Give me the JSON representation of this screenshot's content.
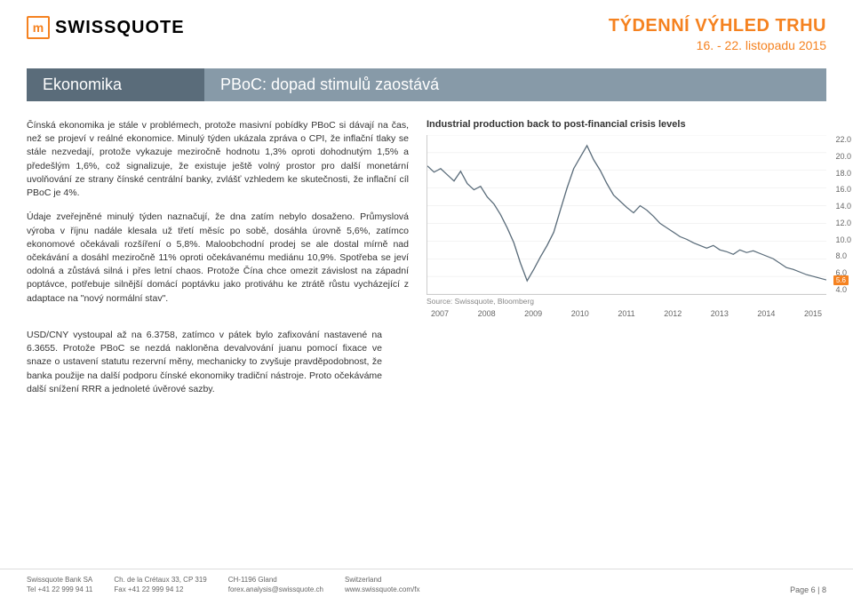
{
  "header": {
    "logo_text": "SWISSQUOTE",
    "report_title": "TÝDENNÍ VÝHLED TRHU",
    "report_date": "16. - 22. listopadu 2015"
  },
  "section": {
    "left": "Ekonomika",
    "right": "PBoC: dopad stimulů zaostává"
  },
  "body": {
    "p1": "Čínská ekonomika je stále v problémech, protože masivní pobídky PBoC si dávají na čas, než se projeví v reálné ekonomice. Minulý týden ukázala zpráva o CPI, že inflační tlaky se stále nezvedají, protože vykazuje meziročně hodnotu 1,3% oproti dohodnutým 1,5% a předešlým 1,6%, což signalizuje, že existuje ještě volný prostor pro další monetární uvolňování ze strany čínské centrální banky, zvlášť vzhledem ke skutečnosti, že inflační cíl PBoC je 4%.",
    "p2": "Údaje zveřejněné minulý týden naznačují, že dna zatím nebylo dosaženo. Průmyslová výroba v říjnu nadále klesala už třetí měsíc po sobě, dosáhla úrovně 5,6%, zatímco ekonomové očekávali rozšíření o 5,8%. Maloobchodní prodej se ale dostal mírně nad očekávání a dosáhl meziročně 11% oproti očekávanému mediánu 10,9%. Spotřeba se jeví odolná a zůstává silná i přes letní chaos. Protože Čína chce omezit závislost na západní poptávce, potřebuje silnější domácí poptávku jako protiváhu ke ztrátě růstu vycházející z adaptace na \"nový normální stav\".",
    "p3": "USD/CNY vystoupal až na 6.3758, zatímco v pátek bylo zafixování nastavené na 6.3655. Protože PBoC se nezdá nakloněna devalvování juanu pomocí fixace ve snaze o ustavení statutu rezervní měny, mechanicky to zvyšuje pravděpodobnost, že banka použije na další podporu čínské ekonomiky tradiční nástroje. Proto očekáváme další snížení RRR a jednoleté úvěrové sazby."
  },
  "chart": {
    "title": "Industrial production back to post-financial crisis levels",
    "source": "Source: Swissquote, Bloomberg",
    "type": "line",
    "line_color": "#5a6c7a",
    "background_color": "#ffffff",
    "grid_color": "#e8e8e8",
    "ylim": [
      4.0,
      22.0
    ],
    "ytick_step": 2.0,
    "y_ticks": [
      "22.0",
      "20.0",
      "18.0",
      "16.0",
      "14.0",
      "12.0",
      "10.0",
      "8.0",
      "6.0",
      "4.0"
    ],
    "x_labels": [
      "2007",
      "2008",
      "2009",
      "2010",
      "2011",
      "2012",
      "2013",
      "2014",
      "2015"
    ],
    "endpoint_value": "5.6",
    "endpoint_color": "#f58220",
    "series_y": [
      18.5,
      17.8,
      18.2,
      17.5,
      16.8,
      17.9,
      16.5,
      15.8,
      16.2,
      15.0,
      14.2,
      13.0,
      11.5,
      9.8,
      7.5,
      5.5,
      6.8,
      8.2,
      9.5,
      11.0,
      13.5,
      16.0,
      18.2,
      19.5,
      20.8,
      19.2,
      18.0,
      16.5,
      15.2,
      14.5,
      13.8,
      13.2,
      14.0,
      13.5,
      12.8,
      12.0,
      11.5,
      11.0,
      10.5,
      10.2,
      9.8,
      9.5,
      9.2,
      9.5,
      9.0,
      8.8,
      8.5,
      9.0,
      8.7,
      8.9,
      8.6,
      8.3,
      8.0,
      7.5,
      7.0,
      6.8,
      6.5,
      6.2,
      6.0,
      5.8,
      5.6
    ],
    "title_fontsize": 11,
    "axis_fontsize": 9,
    "line_width": 1.2
  },
  "footer": {
    "col1_l1": "Swissquote Bank SA",
    "col1_l2": "Tel +41 22 999 94 11",
    "col2_l1": "Ch. de la Crétaux 33, CP 319",
    "col2_l2": "Fax +41 22 999 94 12",
    "col3_l1": "CH-1196 Gland",
    "col3_l2": "forex.analysis@swissquote.ch",
    "col4_l1": "Switzerland",
    "col4_l2": "www.swissquote.com/fx",
    "page": "Page 6 | 8"
  },
  "colors": {
    "brand_orange": "#f58220",
    "section_dark": "#5a6c7a",
    "section_light": "#879aa8"
  }
}
